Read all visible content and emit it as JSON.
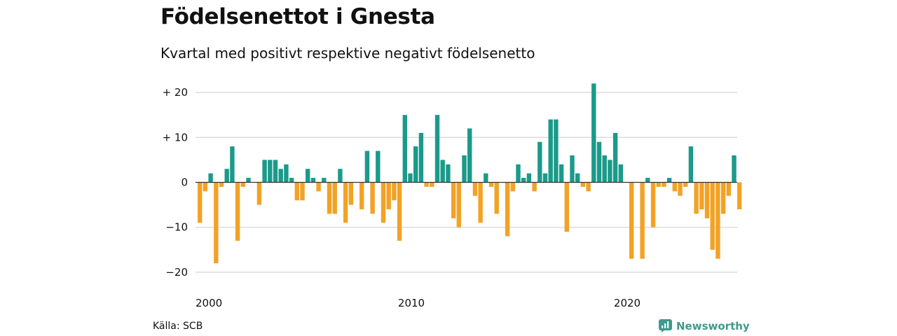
{
  "header": {
    "title": "Födelsenettot i Gnesta",
    "subtitle": "Kvartal med positivt respektive negativt födelsenetto"
  },
  "footer": {
    "source": "Källa: SCB",
    "brand": "Newsworthy",
    "brand_icon": "newsworthy-logo-icon"
  },
  "colors": {
    "positive": "#1b9a8a",
    "negative": "#f2a225",
    "grid": "#dddddd",
    "zero_line": "#333333",
    "brand": "#3f9a8c"
  },
  "chart_data": {
    "type": "bar",
    "title": "Födelsenettot i Gnesta",
    "subtitle": "Kvartal med positivt respektive negativt födelsenetto",
    "xlabel": "",
    "ylabel": "",
    "x_start": "2000 Q1",
    "x_ticks": [
      "2000",
      "2010",
      "2020"
    ],
    "y_ticks": [
      {
        "value": 20,
        "label": "+ 20"
      },
      {
        "value": 10,
        "label": "+ 10"
      },
      {
        "value": 0,
        "label": "0"
      },
      {
        "value": -10,
        "label": "−10"
      },
      {
        "value": -20,
        "label": "−20"
      }
    ],
    "ylim": [
      -22,
      22
    ],
    "grid": true,
    "legend": "none",
    "values": [
      -9,
      -2,
      2,
      -18,
      -1,
      3,
      8,
      -13,
      -1,
      1,
      0,
      -5,
      5,
      5,
      5,
      3,
      4,
      1,
      -4,
      -4,
      3,
      1,
      -2,
      1,
      -7,
      -7,
      3,
      -9,
      -5,
      0,
      -6,
      7,
      -7,
      7,
      -9,
      -6,
      -4,
      -13,
      15,
      2,
      8,
      11,
      -1,
      -1,
      15,
      5,
      4,
      -8,
      -10,
      6,
      12,
      -3,
      -9,
      2,
      -1,
      -7,
      0,
      -12,
      -2,
      4,
      1,
      2,
      -2,
      9,
      2,
      14,
      14,
      4,
      -11,
      6,
      2,
      -1,
      -2,
      22,
      9,
      6,
      5,
      11,
      4,
      0,
      -17,
      0,
      -17,
      1,
      -10,
      -1,
      -1,
      1,
      -2,
      -3,
      -1,
      8,
      -7,
      -6,
      -8,
      -15,
      -17,
      -7,
      -3,
      6,
      -6
    ]
  }
}
